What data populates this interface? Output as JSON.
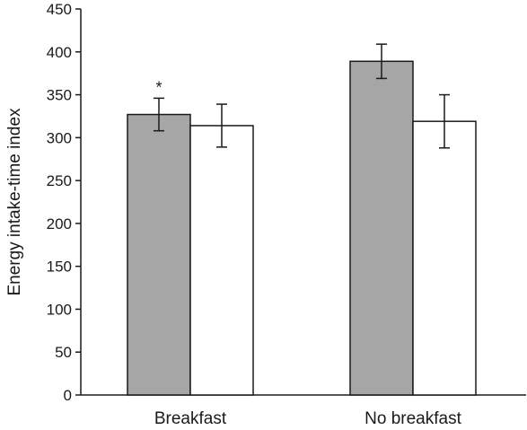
{
  "chart_data": {
    "type": "bar",
    "title": "",
    "xlabel": "",
    "ylabel": "Energy intake-time index",
    "categories": [
      "Breakfast",
      "No breakfast"
    ],
    "ylim": [
      0,
      450
    ],
    "yticks": [
      0,
      50,
      100,
      150,
      200,
      250,
      300,
      350,
      400,
      450
    ],
    "grid": false,
    "legend": "none",
    "series": [
      {
        "fill": "#a6a6a6",
        "values": [
          327,
          389
        ],
        "error": [
          19,
          20
        ]
      },
      {
        "fill": "#ffffff",
        "values": [
          314,
          319
        ],
        "error": [
          25,
          31
        ]
      }
    ],
    "annotations": [
      {
        "category": 0,
        "series": 0,
        "text": "*"
      }
    ]
  }
}
